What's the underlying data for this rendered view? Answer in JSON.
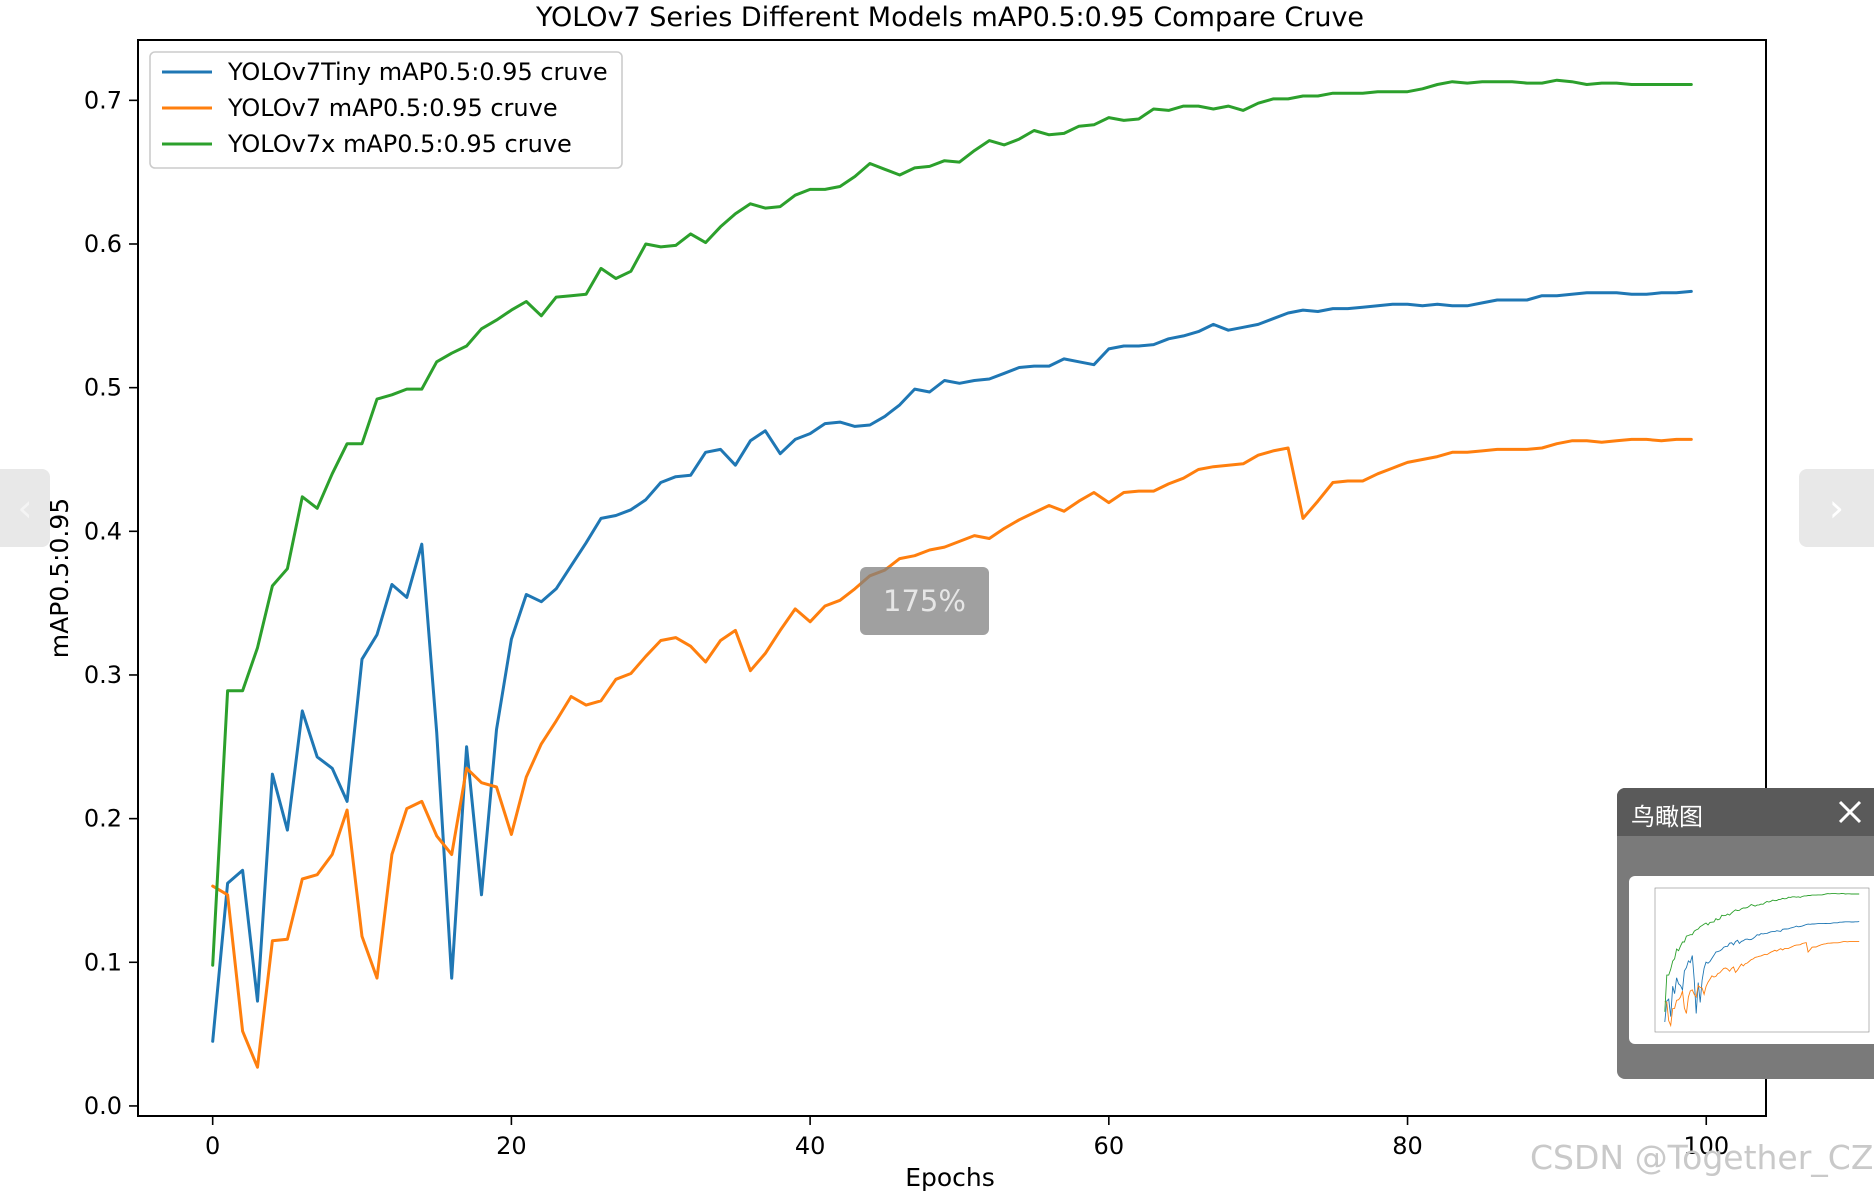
{
  "viewer": {
    "prev_icon": "chevron-left-icon",
    "next_icon": "chevron-right-icon",
    "zoom_label": "175%",
    "birdseye_title": "鸟瞰图",
    "birdseye_close_icon": "close-icon",
    "watermark": "CSDN @Together_CZ"
  },
  "chart_data": {
    "type": "line",
    "title": "YOLOv7 Series Different Models mAP0.5:0.95 Compare Cruve",
    "xlabel": "Epochs",
    "ylabel": "mAP0.5:0.95",
    "xlim": [
      -5,
      104
    ],
    "ylim": [
      -0.007,
      0.742
    ],
    "xticks": [
      0,
      20,
      40,
      60,
      80,
      100
    ],
    "yticks": [
      0.0,
      0.1,
      0.2,
      0.3,
      0.4,
      0.5,
      0.6,
      0.7
    ],
    "grid": false,
    "legend_position": "top-left",
    "x": [
      0,
      1,
      2,
      3,
      4,
      5,
      6,
      7,
      8,
      9,
      10,
      11,
      12,
      13,
      14,
      15,
      16,
      17,
      18,
      19,
      20,
      21,
      22,
      23,
      24,
      25,
      26,
      27,
      28,
      29,
      30,
      31,
      32,
      33,
      34,
      35,
      36,
      37,
      38,
      39,
      40,
      41,
      42,
      43,
      44,
      45,
      46,
      47,
      48,
      49,
      50,
      51,
      52,
      53,
      54,
      55,
      56,
      57,
      58,
      59,
      60,
      61,
      62,
      63,
      64,
      65,
      66,
      67,
      68,
      69,
      70,
      71,
      72,
      73,
      74,
      75,
      76,
      77,
      78,
      79,
      80,
      81,
      82,
      83,
      84,
      85,
      86,
      87,
      88,
      89,
      90,
      91,
      92,
      93,
      94,
      95,
      96,
      97,
      98,
      99
    ],
    "series": [
      {
        "name": "YOLOv7Tiny mAP0.5:0.95 cruve",
        "color": "#1f77b4",
        "values": [
          0.045,
          0.155,
          0.164,
          0.073,
          0.231,
          0.192,
          0.275,
          0.243,
          0.235,
          0.212,
          0.311,
          0.328,
          0.363,
          0.354,
          0.391,
          0.26,
          0.089,
          0.25,
          0.147,
          0.262,
          0.325,
          0.356,
          0.351,
          0.36,
          0.376,
          0.392,
          0.409,
          0.411,
          0.415,
          0.422,
          0.434,
          0.438,
          0.439,
          0.455,
          0.457,
          0.446,
          0.463,
          0.47,
          0.454,
          0.464,
          0.468,
          0.475,
          0.476,
          0.473,
          0.474,
          0.48,
          0.488,
          0.499,
          0.497,
          0.505,
          0.503,
          0.505,
          0.506,
          0.51,
          0.514,
          0.515,
          0.515,
          0.52,
          0.518,
          0.516,
          0.527,
          0.529,
          0.529,
          0.53,
          0.534,
          0.536,
          0.539,
          0.544,
          0.54,
          0.542,
          0.544,
          0.548,
          0.552,
          0.554,
          0.553,
          0.555,
          0.555,
          0.556,
          0.557,
          0.558,
          0.558,
          0.557,
          0.558,
          0.557,
          0.557,
          0.559,
          0.561,
          0.561,
          0.561,
          0.564,
          0.564,
          0.565,
          0.566,
          0.566,
          0.566,
          0.565,
          0.565,
          0.566,
          0.566,
          0.567
        ]
      },
      {
        "name": "YOLOv7 mAP0.5:0.95 cruve",
        "color": "#ff7f0e",
        "values": [
          0.153,
          0.147,
          0.052,
          0.027,
          0.115,
          0.116,
          0.158,
          0.161,
          0.175,
          0.206,
          0.118,
          0.089,
          0.175,
          0.207,
          0.212,
          0.188,
          0.175,
          0.235,
          0.225,
          0.222,
          0.189,
          0.229,
          0.252,
          0.268,
          0.285,
          0.279,
          0.282,
          0.297,
          0.301,
          0.313,
          0.324,
          0.326,
          0.32,
          0.309,
          0.324,
          0.331,
          0.303,
          0.315,
          0.331,
          0.346,
          0.337,
          0.348,
          0.352,
          0.36,
          0.369,
          0.373,
          0.381,
          0.383,
          0.387,
          0.389,
          0.393,
          0.397,
          0.395,
          0.402,
          0.408,
          0.413,
          0.418,
          0.414,
          0.421,
          0.427,
          0.42,
          0.427,
          0.428,
          0.428,
          0.433,
          0.437,
          0.443,
          0.445,
          0.446,
          0.447,
          0.453,
          0.456,
          0.458,
          0.409,
          0.421,
          0.434,
          0.435,
          0.435,
          0.44,
          0.444,
          0.448,
          0.45,
          0.452,
          0.455,
          0.455,
          0.456,
          0.457,
          0.457,
          0.457,
          0.458,
          0.461,
          0.463,
          0.463,
          0.462,
          0.463,
          0.464,
          0.464,
          0.463,
          0.464,
          0.464
        ]
      },
      {
        "name": "YOLOv7x mAP0.5:0.95 cruve",
        "color": "#2ca02c",
        "values": [
          0.098,
          0.289,
          0.289,
          0.319,
          0.362,
          0.374,
          0.424,
          0.416,
          0.44,
          0.461,
          0.461,
          0.492,
          0.495,
          0.499,
          0.499,
          0.518,
          0.524,
          0.529,
          0.541,
          0.547,
          0.554,
          0.56,
          0.55,
          0.563,
          0.564,
          0.565,
          0.583,
          0.576,
          0.581,
          0.6,
          0.598,
          0.599,
          0.607,
          0.601,
          0.612,
          0.621,
          0.628,
          0.625,
          0.626,
          0.634,
          0.638,
          0.638,
          0.64,
          0.647,
          0.656,
          0.652,
          0.648,
          0.653,
          0.654,
          0.658,
          0.657,
          0.665,
          0.672,
          0.669,
          0.673,
          0.679,
          0.676,
          0.677,
          0.682,
          0.683,
          0.688,
          0.686,
          0.687,
          0.694,
          0.693,
          0.696,
          0.696,
          0.694,
          0.696,
          0.693,
          0.698,
          0.701,
          0.701,
          0.703,
          0.703,
          0.705,
          0.705,
          0.705,
          0.706,
          0.706,
          0.706,
          0.708,
          0.711,
          0.713,
          0.712,
          0.713,
          0.713,
          0.713,
          0.712,
          0.712,
          0.714,
          0.713,
          0.711,
          0.712,
          0.712,
          0.711,
          0.711,
          0.711,
          0.711,
          0.711
        ]
      }
    ]
  }
}
